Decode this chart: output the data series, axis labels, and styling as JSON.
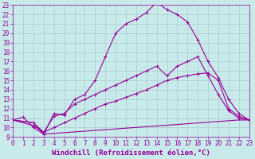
{
  "xlabel": "Windchill (Refroidissement éolien,°C)",
  "background_color": "#c8eaea",
  "line_color": "#990099",
  "grid_color": "#aacccc",
  "xlim": [
    0,
    23
  ],
  "ylim": [
    9,
    23
  ],
  "xticks": [
    0,
    1,
    2,
    3,
    4,
    5,
    6,
    7,
    8,
    9,
    10,
    11,
    12,
    13,
    14,
    15,
    16,
    17,
    18,
    19,
    20,
    21,
    22,
    23
  ],
  "yticks": [
    9,
    10,
    11,
    12,
    13,
    14,
    15,
    16,
    17,
    18,
    19,
    20,
    21,
    22,
    23
  ],
  "line1_x": [
    0,
    1,
    2,
    3,
    4,
    5,
    6,
    7,
    8,
    9,
    10,
    11,
    12,
    13,
    14,
    15,
    16,
    17,
    18,
    19,
    20,
    21,
    22,
    23
  ],
  "line1_y": [
    10.8,
    11.1,
    10.0,
    9.3,
    11.5,
    11.3,
    13.0,
    13.5,
    15.0,
    17.5,
    20.0,
    21.0,
    21.5,
    22.2,
    23.3,
    22.5,
    22.0,
    21.2,
    19.3,
    17.0,
    15.3,
    13.0,
    11.5,
    10.8
  ],
  "line2_x": [
    0,
    2,
    3,
    4,
    5,
    6,
    7,
    8,
    9,
    10,
    11,
    12,
    13,
    14,
    15,
    16,
    17,
    18,
    19,
    20,
    21,
    22,
    23
  ],
  "line2_y": [
    10.8,
    10.2,
    9.5,
    11.2,
    11.5,
    12.5,
    13.0,
    13.5,
    14.0,
    14.5,
    15.0,
    15.5,
    16.0,
    16.5,
    15.5,
    16.5,
    17.0,
    17.5,
    15.5,
    13.5,
    11.8,
    11.0,
    10.8
  ],
  "line3_x": [
    0,
    2,
    3,
    4,
    5,
    6,
    7,
    8,
    9,
    10,
    11,
    12,
    13,
    14,
    15,
    16,
    17,
    18,
    19,
    20,
    21,
    22,
    23
  ],
  "line3_y": [
    10.8,
    10.5,
    9.5,
    10.0,
    10.5,
    11.0,
    11.5,
    12.0,
    12.5,
    12.8,
    13.2,
    13.6,
    14.0,
    14.5,
    15.0,
    15.3,
    15.5,
    15.7,
    15.8,
    15.0,
    12.0,
    11.2,
    10.8
  ],
  "line4_x": [
    0,
    2,
    3,
    22,
    23
  ],
  "line4_y": [
    10.8,
    10.5,
    9.3,
    10.8,
    10.8
  ],
  "xlabel_color": "#990099",
  "tick_color": "#990099",
  "xlabel_fontsize": 6.5,
  "tick_fontsize": 5.5
}
